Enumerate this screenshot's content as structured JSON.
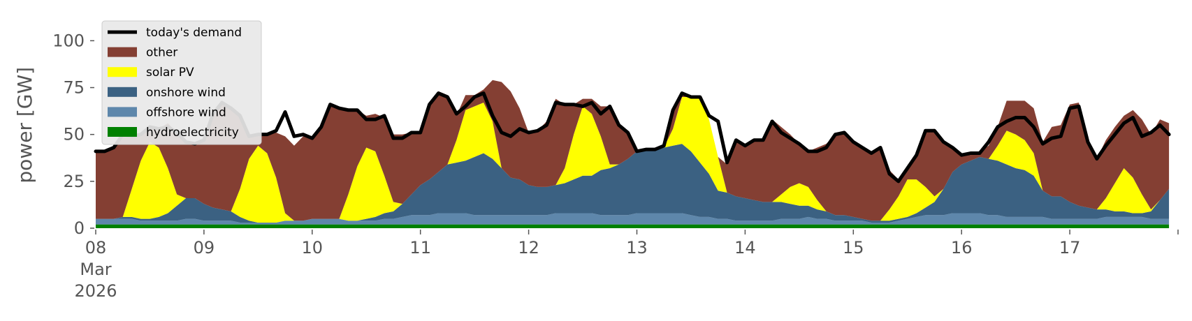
{
  "chart_data": {
    "type": "area",
    "stacked": true,
    "ylabel": "power [GW]",
    "ylim": [
      0,
      118
    ],
    "yticks": [
      0,
      25,
      50,
      75,
      100
    ],
    "xlim": [
      "2026-03-08T00:00",
      "2026-03-17T22:00"
    ],
    "xticks": [
      {
        "date": "2026-03-08",
        "label": "08",
        "sub": [
          "Mar",
          "2026"
        ]
      },
      {
        "date": "2026-03-09",
        "label": "09"
      },
      {
        "date": "2026-03-10",
        "label": "10"
      },
      {
        "date": "2026-03-11",
        "label": "11"
      },
      {
        "date": "2026-03-12",
        "label": "12"
      },
      {
        "date": "2026-03-13",
        "label": "13"
      },
      {
        "date": "2026-03-14",
        "label": "14"
      },
      {
        "date": "2026-03-15",
        "label": "15"
      },
      {
        "date": "2026-03-16",
        "label": "16"
      },
      {
        "date": "2026-03-17",
        "label": "17"
      },
      {
        "date": "2026-03-18",
        "label": ""
      }
    ],
    "grid": false,
    "legend": "top-left",
    "x": [
      "2026-03-08T00:00",
      "2026-03-08T02:00",
      "2026-03-08T04:00",
      "2026-03-08T06:00",
      "2026-03-08T08:00",
      "2026-03-08T10:00",
      "2026-03-08T12:00",
      "2026-03-08T14:00",
      "2026-03-08T16:00",
      "2026-03-08T18:00",
      "2026-03-08T20:00",
      "2026-03-08T22:00",
      "2026-03-09T00:00",
      "2026-03-09T02:00",
      "2026-03-09T04:00",
      "2026-03-09T06:00",
      "2026-03-09T08:00",
      "2026-03-09T10:00",
      "2026-03-09T12:00",
      "2026-03-09T14:00",
      "2026-03-09T16:00",
      "2026-03-09T18:00",
      "2026-03-09T20:00",
      "2026-03-09T22:00",
      "2026-03-10T00:00",
      "2026-03-10T02:00",
      "2026-03-10T04:00",
      "2026-03-10T06:00",
      "2026-03-10T08:00",
      "2026-03-10T10:00",
      "2026-03-10T12:00",
      "2026-03-10T14:00",
      "2026-03-10T16:00",
      "2026-03-10T18:00",
      "2026-03-10T20:00",
      "2026-03-10T22:00",
      "2026-03-11T00:00",
      "2026-03-11T02:00",
      "2026-03-11T04:00",
      "2026-03-11T06:00",
      "2026-03-11T08:00",
      "2026-03-11T10:00",
      "2026-03-11T12:00",
      "2026-03-11T14:00",
      "2026-03-11T16:00",
      "2026-03-11T18:00",
      "2026-03-11T20:00",
      "2026-03-11T22:00",
      "2026-03-12T00:00",
      "2026-03-12T02:00",
      "2026-03-12T04:00",
      "2026-03-12T06:00",
      "2026-03-12T08:00",
      "2026-03-12T10:00",
      "2026-03-12T12:00",
      "2026-03-12T14:00",
      "2026-03-12T16:00",
      "2026-03-12T18:00",
      "2026-03-12T20:00",
      "2026-03-12T22:00",
      "2026-03-13T00:00",
      "2026-03-13T02:00",
      "2026-03-13T04:00",
      "2026-03-13T06:00",
      "2026-03-13T08:00",
      "2026-03-13T10:00",
      "2026-03-13T12:00",
      "2026-03-13T14:00",
      "2026-03-13T16:00",
      "2026-03-13T18:00",
      "2026-03-13T20:00",
      "2026-03-13T22:00",
      "2026-03-14T00:00",
      "2026-03-14T02:00",
      "2026-03-14T04:00",
      "2026-03-14T06:00",
      "2026-03-14T08:00",
      "2026-03-14T10:00",
      "2026-03-14T12:00",
      "2026-03-14T14:00",
      "2026-03-14T16:00",
      "2026-03-14T18:00",
      "2026-03-14T20:00",
      "2026-03-14T22:00",
      "2026-03-15T00:00",
      "2026-03-15T02:00",
      "2026-03-15T04:00",
      "2026-03-15T06:00",
      "2026-03-15T08:00",
      "2026-03-15T10:00",
      "2026-03-15T12:00",
      "2026-03-15T14:00",
      "2026-03-15T16:00",
      "2026-03-15T18:00",
      "2026-03-15T20:00",
      "2026-03-15T22:00",
      "2026-03-16T00:00",
      "2026-03-16T02:00",
      "2026-03-16T04:00",
      "2026-03-16T06:00",
      "2026-03-16T08:00",
      "2026-03-16T10:00",
      "2026-03-16T12:00",
      "2026-03-16T14:00",
      "2026-03-16T16:00",
      "2026-03-16T18:00",
      "2026-03-16T20:00",
      "2026-03-16T22:00",
      "2026-03-17T00:00",
      "2026-03-17T02:00",
      "2026-03-17T04:00",
      "2026-03-17T06:00",
      "2026-03-17T08:00",
      "2026-03-17T10:00",
      "2026-03-17T12:00",
      "2026-03-17T14:00",
      "2026-03-17T16:00",
      "2026-03-17T18:00",
      "2026-03-17T20:00",
      "2026-03-17T22:00"
    ],
    "series": [
      {
        "name": "hydroelectricity",
        "color": "#008000",
        "values": [
          2,
          2,
          2,
          2,
          2,
          2,
          2,
          2,
          2,
          2,
          2,
          2,
          2,
          2,
          2,
          2,
          2,
          2,
          2,
          2,
          2,
          2,
          2,
          2,
          2,
          2,
          2,
          2,
          2,
          2,
          2,
          2,
          2,
          2,
          2,
          2,
          2,
          2,
          2,
          2,
          2,
          2,
          2,
          2,
          2,
          2,
          2,
          2,
          2,
          2,
          2,
          2,
          2,
          2,
          2,
          2,
          2,
          2,
          2,
          2,
          2,
          2,
          2,
          2,
          2,
          2,
          2,
          2,
          2,
          2,
          2,
          2,
          2,
          2,
          2,
          2,
          2,
          2,
          2,
          2,
          2,
          2,
          2,
          2,
          2,
          2,
          2,
          2,
          2,
          2,
          2,
          2,
          2,
          2,
          2,
          2,
          2,
          2,
          2,
          2,
          2,
          2,
          2,
          2,
          2,
          2,
          2,
          2,
          2,
          2,
          2,
          2,
          2,
          2,
          2,
          2,
          2,
          2,
          2,
          2
        ]
      },
      {
        "name": "offshore wind",
        "color": "#5e87ab",
        "values": [
          3,
          3,
          3,
          3,
          3,
          2,
          2,
          2,
          2,
          2,
          3,
          3,
          2,
          2,
          2,
          2,
          1,
          1,
          1,
          1,
          1,
          2,
          2,
          2,
          3,
          3,
          3,
          3,
          2,
          2,
          2,
          2,
          3,
          3,
          4,
          5,
          5,
          5,
          6,
          6,
          6,
          6,
          5,
          5,
          5,
          5,
          5,
          5,
          5,
          5,
          5,
          6,
          6,
          6,
          6,
          6,
          5,
          5,
          5,
          5,
          6,
          6,
          6,
          6,
          6,
          6,
          5,
          4,
          4,
          3,
          3,
          2,
          2,
          2,
          2,
          2,
          3,
          3,
          3,
          4,
          3,
          3,
          2,
          2,
          2,
          2,
          1,
          1,
          1,
          2,
          3,
          4,
          5,
          5,
          5,
          6,
          6,
          6,
          6,
          5,
          5,
          4,
          4,
          4,
          4,
          4,
          3,
          3,
          3,
          3,
          3,
          3,
          4,
          4,
          4,
          4,
          4,
          3,
          3,
          3
        ]
      },
      {
        "name": "onshore wind",
        "color": "#3b6182",
        "values": [
          0,
          0,
          0,
          1,
          1,
          1,
          1,
          2,
          4,
          8,
          11,
          11,
          9,
          7,
          6,
          5,
          3,
          1,
          0,
          0,
          0,
          0,
          0,
          0,
          0,
          0,
          0,
          0,
          0,
          0,
          1,
          2,
          3,
          4,
          7,
          11,
          16,
          19,
          22,
          26,
          27,
          28,
          31,
          33,
          30,
          25,
          20,
          19,
          16,
          15,
          15,
          15,
          16,
          18,
          20,
          20,
          24,
          25,
          27,
          30,
          33,
          34,
          34,
          35,
          36,
          37,
          34,
          29,
          23,
          15,
          14,
          13,
          12,
          11,
          10,
          10,
          9,
          8,
          7,
          6,
          5,
          4,
          3,
          3,
          2,
          1,
          1,
          1,
          1,
          1,
          1,
          2,
          4,
          7,
          14,
          22,
          26,
          28,
          30,
          30,
          29,
          28,
          26,
          25,
          22,
          14,
          12,
          12,
          9,
          7,
          6,
          5,
          4,
          3,
          3,
          2,
          2,
          4,
          10,
          16
        ]
      },
      {
        "name": "solar PV",
        "color": "#ffff00",
        "values": [
          0,
          0,
          0,
          0,
          15,
          31,
          41,
          37,
          24,
          6,
          0,
          0,
          0,
          0,
          0,
          0,
          15,
          33,
          41,
          37,
          24,
          4,
          0,
          0,
          0,
          0,
          0,
          0,
          14,
          29,
          38,
          35,
          20,
          5,
          0,
          0,
          0,
          0,
          0,
          0,
          12,
          27,
          27,
          27,
          20,
          0,
          0,
          0,
          0,
          0,
          0,
          0,
          8,
          24,
          37,
          33,
          18,
          2,
          0,
          0,
          0,
          0,
          0,
          0,
          9,
          25,
          29,
          35,
          29,
          18,
          0,
          0,
          0,
          0,
          0,
          0,
          4,
          9,
          12,
          10,
          5,
          0,
          0,
          0,
          0,
          0,
          0,
          0,
          6,
          12,
          20,
          18,
          11,
          3,
          0,
          0,
          0,
          0,
          0,
          0,
          8,
          18,
          18,
          16,
          12,
          0,
          0,
          0,
          0,
          0,
          0,
          0,
          6,
          15,
          23,
          19,
          10,
          1,
          0,
          0
        ]
      },
      {
        "name": "other",
        "color": "#843f33",
        "values": [
          36,
          36,
          38,
          44,
          28,
          14,
          8,
          10,
          24,
          33,
          30,
          29,
          34,
          50,
          57,
          56,
          39,
          12,
          6,
          10,
          24,
          41,
          40,
          45,
          43,
          49,
          61,
          59,
          45,
          30,
          17,
          20,
          31,
          36,
          37,
          33,
          28,
          40,
          43,
          37,
          13,
          8,
          6,
          7,
          22,
          46,
          46,
          38,
          28,
          30,
          35,
          46,
          34,
          16,
          4,
          8,
          16,
          31,
          20,
          14,
          0,
          0,
          0,
          1,
          8,
          2,
          0,
          0,
          0,
          0,
          15,
          30,
          28,
          32,
          33,
          44,
          36,
          28,
          21,
          19,
          28,
          36,
          43,
          45,
          40,
          38,
          36,
          39,
          21,
          9,
          7,
          12,
          30,
          36,
          25,
          14,
          6,
          3,
          3,
          7,
          10,
          16,
          18,
          21,
          24,
          26,
          37,
          38,
          52,
          55,
          35,
          27,
          31,
          30,
          28,
          36,
          40,
          40,
          43,
          35
        ]
      },
      {
        "name": "today's demand",
        "color": "#000000",
        "type": "line",
        "values": [
          41,
          41,
          43,
          50,
          49,
          50,
          54,
          53,
          54,
          51,
          46,
          45,
          47,
          61,
          67,
          64,
          60,
          49,
          50,
          50,
          52,
          62,
          49,
          50,
          48,
          54,
          66,
          64,
          63,
          63,
          58,
          58,
          60,
          48,
          48,
          51,
          51,
          66,
          72,
          70,
          61,
          65,
          70,
          72,
          60,
          51,
          49,
          53,
          51,
          52,
          55,
          67,
          66,
          66,
          65,
          67,
          61,
          65,
          55,
          51,
          41,
          42,
          42,
          44,
          63,
          72,
          70,
          70,
          60,
          57,
          35,
          47,
          44,
          47,
          47,
          57,
          51,
          48,
          45,
          41,
          41,
          43,
          50,
          51,
          46,
          43,
          40,
          43,
          29,
          25,
          32,
          39,
          52,
          52,
          46,
          43,
          39,
          40,
          40,
          46,
          54,
          57,
          59,
          59,
          54,
          45,
          48,
          49,
          64,
          65,
          46,
          37,
          44,
          50,
          56,
          59,
          49,
          51,
          55,
          50
        ]
      }
    ]
  }
}
